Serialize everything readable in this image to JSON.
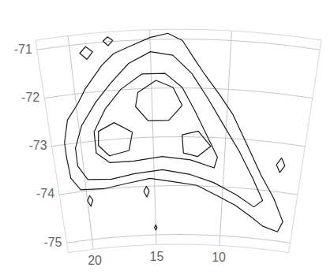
{
  "chart_data": {
    "type": "contour",
    "color": "#1a1a1a",
    "grid": true,
    "xlim": [
      22,
      4.5
    ],
    "ylim": [
      -70.8,
      -75.2
    ],
    "xticks": [
      20,
      15,
      10
    ],
    "yticks": [
      -71,
      -72,
      -73,
      -74,
      -75
    ],
    "contours": [
      {
        "x": [
          21.1,
          20.7,
          19.9,
          19.3,
          18.7,
          18.1,
          17.3,
          16.1,
          15.0,
          13.9,
          13.0,
          12.4,
          11.6,
          10.5,
          9.6,
          8.5,
          7.3,
          6.2,
          5.3,
          5.6,
          6.8,
          7.6,
          9.0,
          10.2,
          11.9,
          13.6,
          15.3,
          17.0,
          18.7,
          20.4,
          21.0,
          21.1
        ],
        "y": [
          -72.96,
          -72.51,
          -72.21,
          -71.92,
          -71.7,
          -71.47,
          -71.25,
          -71.1,
          -70.96,
          -70.88,
          -71.03,
          -71.33,
          -71.7,
          -72.14,
          -72.51,
          -73.1,
          -73.7,
          -74.14,
          -74.59,
          -74.81,
          -74.73,
          -74.59,
          -74.36,
          -74.21,
          -73.99,
          -73.92,
          -73.84,
          -73.92,
          -73.99,
          -73.96,
          -73.7,
          -73.25
        ]
      },
      {
        "x": [
          20.4,
          19.8,
          18.7,
          17.6,
          16.4,
          15.0,
          13.6,
          12.4,
          11.3,
          10.2,
          9.0,
          7.9,
          7.0,
          7.6,
          9.0,
          10.7,
          12.4,
          14.4,
          16.4,
          18.1,
          19.8,
          20.4
        ],
        "y": [
          -73.1,
          -72.66,
          -72.21,
          -71.84,
          -71.47,
          -71.25,
          -71.33,
          -71.7,
          -72.21,
          -72.73,
          -73.25,
          -73.77,
          -74.21,
          -74.36,
          -74.14,
          -73.92,
          -73.77,
          -73.67,
          -73.73,
          -73.81,
          -73.77,
          -73.47
        ]
      },
      {
        "x": [
          19.0,
          18.1,
          17.0,
          15.6,
          14.1,
          13.0,
          12.2,
          11.3,
          10.5,
          10.7,
          12.4,
          14.4,
          16.4,
          18.1,
          19.0
        ],
        "y": [
          -72.81,
          -72.36,
          -71.99,
          -71.7,
          -71.7,
          -71.99,
          -72.44,
          -72.96,
          -73.4,
          -73.62,
          -73.47,
          -73.4,
          -73.47,
          -73.47,
          -73.25
        ]
      },
      {
        "x": [
          15.9,
          14.7,
          13.6,
          13.0,
          13.9,
          15.3,
          16.1
        ],
        "y": [
          -72.07,
          -71.84,
          -71.99,
          -72.36,
          -72.66,
          -72.66,
          -72.36
        ]
      },
      {
        "x": [
          18.7,
          17.6,
          16.4,
          16.7,
          18.1,
          18.8
        ],
        "y": [
          -72.81,
          -72.66,
          -72.88,
          -73.25,
          -73.33,
          -73.1
        ]
      },
      {
        "x": [
          13.0,
          11.9,
          11.0,
          11.9,
          12.9
        ],
        "y": [
          -72.96,
          -72.88,
          -73.18,
          -73.4,
          -73.33
        ]
      },
      {
        "x": [
          17.9,
          17.6,
          17.3,
          17.6
        ],
        "y": [
          -70.98,
          -70.9,
          -70.98,
          -71.08
        ]
      },
      {
        "x": [
          19.4,
          19.0,
          18.6,
          19.0
        ],
        "y": [
          -71.18,
          -71.06,
          -71.18,
          -71.32
        ]
      },
      {
        "x": [
          20.0,
          19.8,
          19.6,
          19.8
        ],
        "y": [
          -74.2,
          -74.1,
          -74.2,
          -74.32
        ]
      },
      {
        "x": [
          15.8,
          15.6,
          15.4,
          15.6
        ],
        "y": [
          -74.1,
          -74.0,
          -74.1,
          -74.22
        ]
      },
      {
        "x": [
          6.3,
          6.0,
          5.7,
          6.0
        ],
        "y": [
          -73.45,
          -73.3,
          -73.45,
          -73.6
        ]
      },
      {
        "x": [
          15.1,
          15.0,
          14.9,
          15.0
        ],
        "y": [
          -74.85,
          -74.8,
          -74.85,
          -74.9
        ]
      }
    ]
  }
}
